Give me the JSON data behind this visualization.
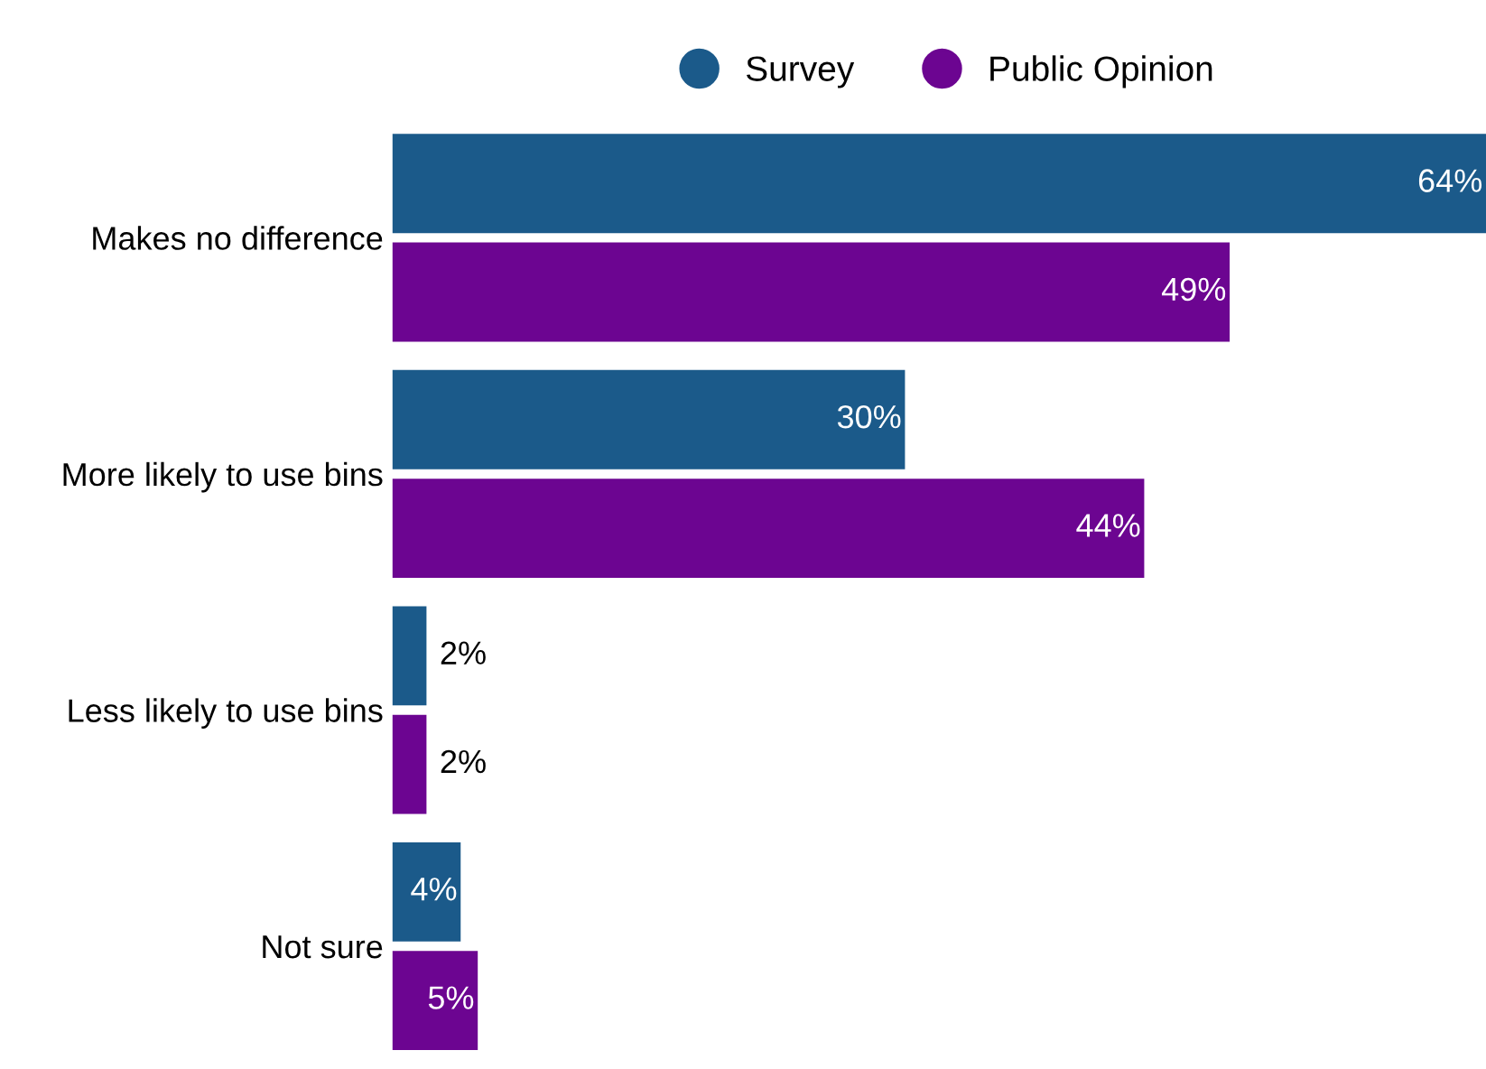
{
  "chart_data": {
    "type": "bar",
    "orientation": "horizontal",
    "categories": [
      "Makes no difference",
      "More likely to use bins",
      "Less likely to use bins",
      "Not sure"
    ],
    "series": [
      {
        "name": "Survey",
        "color": "#1b5a8a",
        "values": [
          64,
          30,
          2,
          4
        ],
        "value_labels": [
          "64%",
          "30%",
          "2%",
          "4%"
        ]
      },
      {
        "name": "Public Opinion",
        "color": "#6c0591",
        "values": [
          49,
          44,
          2,
          5
        ],
        "value_labels": [
          "49%",
          "44%",
          "2%",
          "5%"
        ]
      }
    ],
    "xlim": [
      0,
      64
    ],
    "tick_labels": "y",
    "grid": false,
    "legend": "top"
  }
}
